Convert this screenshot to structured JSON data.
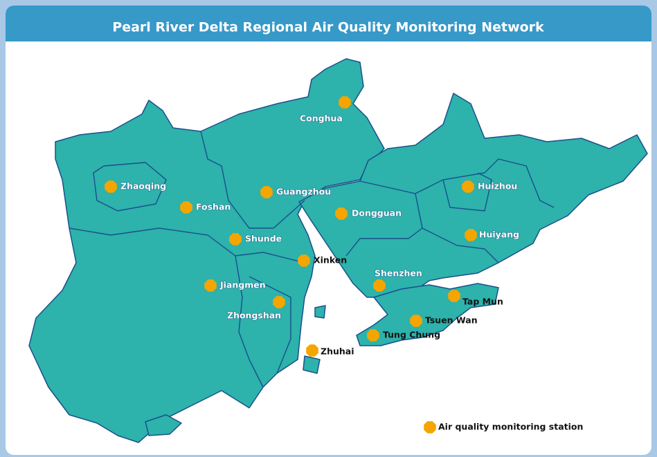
{
  "title": "Pearl River Delta Regional Air Quality Monitoring Network",
  "stations": [
    {
      "label": "Conghua"
    },
    {
      "label": "Zhaoqing"
    },
    {
      "label": "Foshan"
    },
    {
      "label": "Guangzhou"
    },
    {
      "label": "Dongguan"
    },
    {
      "label": "Huizhou"
    },
    {
      "label": "Huiyang"
    },
    {
      "label": "Shunde"
    },
    {
      "label": "Xinken"
    },
    {
      "label": "Shenzhen"
    },
    {
      "label": "Jiangmen"
    },
    {
      "label": "Zhongshan"
    },
    {
      "label": "Tap Mun"
    },
    {
      "label": "Tsuen Wan"
    },
    {
      "label": "Tung Chung"
    },
    {
      "label": "Zhuhai"
    }
  ],
  "legend": {
    "label": "Air quality monitoring station"
  }
}
